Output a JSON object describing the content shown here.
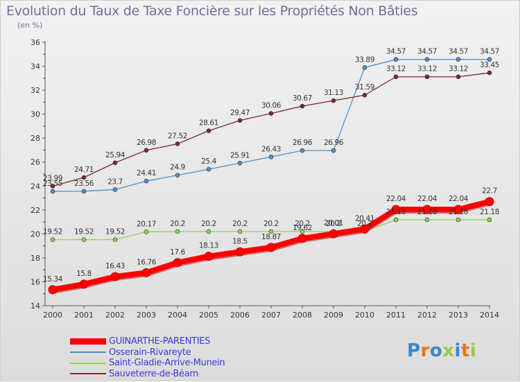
{
  "header": {
    "title": "Evolution du Taux de Taxe Foncière sur les Propriétés Non Bâties",
    "subtitle": "(en %)"
  },
  "logo": {
    "text": "Proxiti",
    "colors": [
      "#3a86c8",
      "#e8731a",
      "#3a86c8",
      "#9acb3c",
      "#3a86c8",
      "#e8731a",
      "#9acb3c"
    ]
  },
  "chart_data": {
    "type": "line",
    "title": "Evolution du Taux de Taxe Foncière sur les Propriétés Non Bâties",
    "ylabel": "(en %)",
    "x": [
      "2000",
      "2001",
      "2002",
      "2003",
      "2004",
      "2005",
      "2006",
      "2007",
      "2008",
      "2009",
      "2010",
      "2011",
      "2012",
      "2013",
      "2014"
    ],
    "ylim": [
      14,
      36
    ],
    "yticks": [
      14,
      16,
      18,
      20,
      22,
      24,
      26,
      28,
      30,
      32,
      34,
      36
    ],
    "grid": false,
    "legend_position": "bottom-left",
    "series": [
      {
        "name": "GUINARTHE-PARENTIES",
        "color": "#ff0000",
        "values": [
          15.34,
          15.8,
          16.43,
          16.76,
          17.6,
          18.13,
          18.5,
          18.87,
          19.62,
          20.01,
          20.41,
          22.04,
          22.04,
          22.04,
          22.7
        ],
        "labels": [
          "15.34",
          "15.8",
          "16.43",
          "16.76",
          "17.6",
          "18.13",
          "18.5",
          "18.87",
          "19.62",
          "20.01",
          "20.41",
          "22.04",
          "22.04",
          "22.04",
          "22.7"
        ]
      },
      {
        "name": "Osserain-Rivareyte",
        "color": "#4d8fcf",
        "values": [
          23.55,
          23.56,
          23.7,
          24.41,
          24.9,
          25.4,
          25.91,
          26.43,
          26.96,
          26.96,
          33.89,
          34.57,
          34.57,
          34.57,
          34.57
        ],
        "labels": [
          "23.55",
          "23.56",
          "23.7",
          "24.41",
          "24.9",
          "25.4",
          "25.91",
          "26.43",
          "26.96",
          "26.96",
          "33.89",
          "34.57",
          "34.57",
          "34.57",
          "34.57"
        ]
      },
      {
        "name": "Saint-Gladie-Arrive-Munein",
        "color": "#8fd14f",
        "values": [
          19.52,
          19.52,
          19.52,
          20.17,
          20.2,
          20.2,
          20.2,
          20.2,
          20.2,
          20.2,
          20.2,
          21.18,
          21.18,
          21.18,
          21.18
        ],
        "labels": [
          "19.52",
          "19.52",
          "19.52",
          "20.17",
          "20.2",
          "20.2",
          "20.2",
          "20.2",
          "20.2",
          "20.2",
          "20.2",
          "21.18",
          "21.18",
          "21.18",
          "21.18"
        ]
      },
      {
        "name": "Sauveterre-de-Béarn",
        "color": "#7a2a2a",
        "values": [
          23.99,
          24.71,
          25.94,
          26.98,
          27.52,
          28.61,
          29.47,
          30.06,
          30.67,
          31.13,
          31.59,
          33.12,
          33.12,
          33.12,
          33.45
        ],
        "labels": [
          "23.99",
          "24.71",
          "25.94",
          "26.98",
          "27.52",
          "28.61",
          "29.47",
          "30.06",
          "30.67",
          "31.13",
          "31.59",
          "33.12",
          "33.12",
          "33.12",
          "33.45"
        ]
      }
    ]
  }
}
